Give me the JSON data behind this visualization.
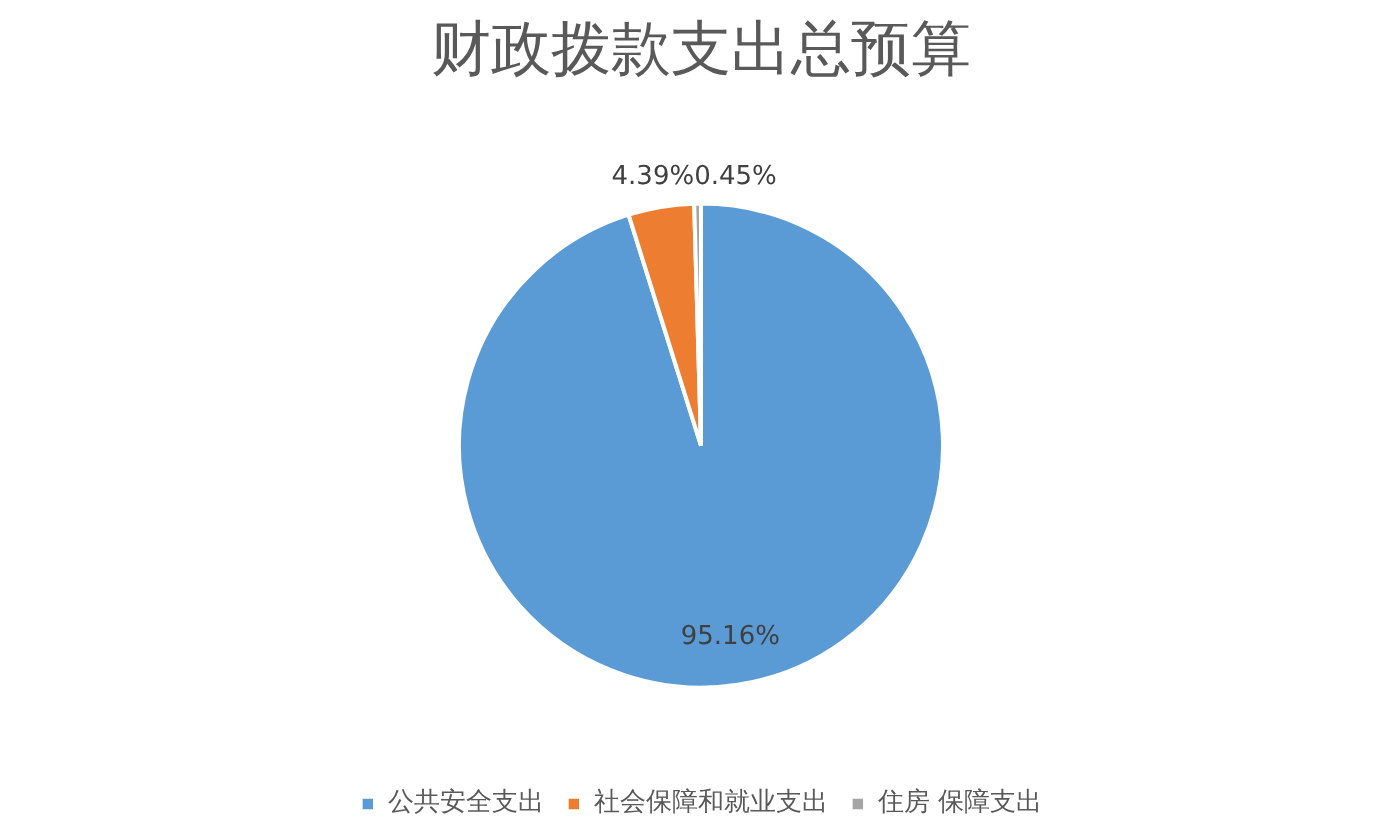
{
  "chart_data": {
    "type": "pie",
    "title": "财政拨款支出总预算",
    "categories": [
      "公共安全支出",
      "社会保障和就业支出",
      "住房 保障支出"
    ],
    "values": [
      95.16,
      4.39,
      0.45
    ],
    "colors": [
      "#5b9bd5",
      "#ed7d31",
      "#a5a5a5"
    ],
    "value_labels": [
      "95.16%",
      "4.39%",
      "0.45%"
    ],
    "legend": "bottom"
  }
}
